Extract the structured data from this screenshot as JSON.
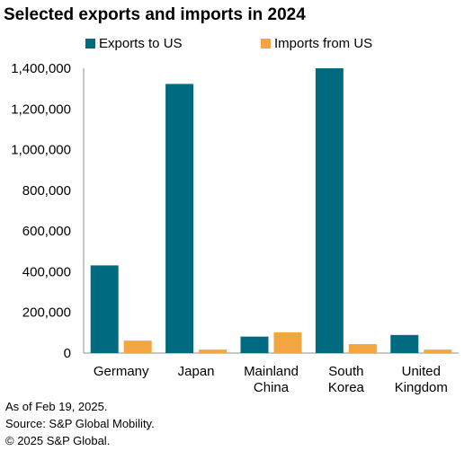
{
  "chart_data": {
    "type": "bar",
    "title": "Selected exports and imports in 2024",
    "xlabel": "",
    "ylabel": "",
    "categories": [
      [
        "Germany"
      ],
      [
        "Japan"
      ],
      [
        "Mainland",
        "China"
      ],
      [
        "South",
        "Korea"
      ],
      [
        "United",
        "Kingdom"
      ]
    ],
    "series": [
      {
        "name": "Exports to US",
        "color": "#006B80",
        "values": [
          431000,
          1323000,
          81000,
          1400000,
          89000
        ]
      },
      {
        "name": "Imports from US",
        "color": "#F2A641",
        "values": [
          61000,
          17000,
          102000,
          44000,
          17000
        ]
      }
    ],
    "ylim": [
      0,
      1400000
    ],
    "yticks": [
      0,
      200000,
      400000,
      600000,
      800000,
      1000000,
      1200000,
      1400000
    ],
    "ytick_labels": [
      "0",
      "200,000",
      "400,000",
      "600,000",
      "800,000",
      "1,000,000",
      "1,200,000",
      "1,400,000"
    ],
    "grid": false,
    "legend_position": "top"
  },
  "notes": [
    "As of Feb 19, 2025.",
    "Source: S&P Global Mobility.",
    "© 2025 S&P Global."
  ]
}
